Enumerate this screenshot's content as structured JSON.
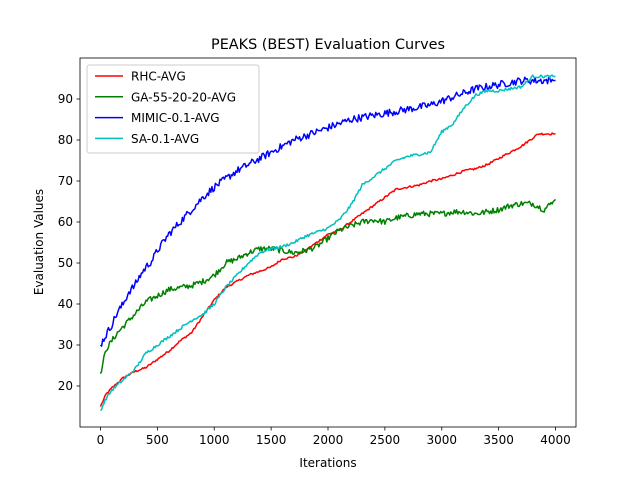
{
  "chart_data": {
    "type": "line",
    "title": "PEAKS (BEST) Evaluation Curves",
    "xlabel": "Iterations",
    "ylabel": "Evaluation Values",
    "xlim": [
      -180,
      4180
    ],
    "ylim": [
      10,
      100
    ],
    "xticks": [
      0,
      500,
      1000,
      1500,
      2000,
      2500,
      3000,
      3500,
      4000
    ],
    "yticks": [
      20,
      30,
      40,
      50,
      60,
      70,
      80,
      90
    ],
    "grid": false,
    "legend_position": "upper-left",
    "series": [
      {
        "name": "RHC-AVG",
        "color": "#ff0000",
        "points": [
          [
            0,
            15.0
          ],
          [
            50,
            18.0
          ],
          [
            100,
            19.5
          ],
          [
            200,
            22.0
          ],
          [
            300,
            23.5
          ],
          [
            400,
            24.5
          ],
          [
            500,
            26.5
          ],
          [
            600,
            28.5
          ],
          [
            700,
            31.0
          ],
          [
            800,
            33.0
          ],
          [
            900,
            37.0
          ],
          [
            1000,
            41.0
          ],
          [
            1100,
            44.0
          ],
          [
            1200,
            45.5
          ],
          [
            1300,
            47.0
          ],
          [
            1400,
            48.0
          ],
          [
            1500,
            49.0
          ],
          [
            1600,
            51.0
          ],
          [
            1700,
            51.5
          ],
          [
            1800,
            53.0
          ],
          [
            1900,
            55.0
          ],
          [
            2000,
            57.0
          ],
          [
            2100,
            58.0
          ],
          [
            2200,
            60.0
          ],
          [
            2300,
            62.0
          ],
          [
            2400,
            64.0
          ],
          [
            2500,
            66.0
          ],
          [
            2600,
            68.0
          ],
          [
            2700,
            68.5
          ],
          [
            2800,
            69.0
          ],
          [
            2900,
            70.0
          ],
          [
            3000,
            70.5
          ],
          [
            3100,
            71.5
          ],
          [
            3200,
            72.5
          ],
          [
            3300,
            73.0
          ],
          [
            3400,
            74.0
          ],
          [
            3500,
            75.5
          ],
          [
            3600,
            77.0
          ],
          [
            3700,
            78.5
          ],
          [
            3750,
            79.5
          ],
          [
            3800,
            80.5
          ],
          [
            3850,
            81.5
          ],
          [
            3900,
            81.5
          ],
          [
            4000,
            81.5
          ]
        ]
      },
      {
        "name": "GA-55-20-20-AVG",
        "color": "#008000",
        "points": [
          [
            0,
            23.0
          ],
          [
            50,
            29.0
          ],
          [
            100,
            31.0
          ],
          [
            150,
            33.0
          ],
          [
            200,
            34.5
          ],
          [
            250,
            36.0
          ],
          [
            300,
            37.5
          ],
          [
            350,
            39.0
          ],
          [
            400,
            40.5
          ],
          [
            500,
            42.0
          ],
          [
            600,
            43.5
          ],
          [
            700,
            44.0
          ],
          [
            800,
            44.5
          ],
          [
            900,
            45.5
          ],
          [
            1000,
            47.0
          ],
          [
            1100,
            50.0
          ],
          [
            1200,
            51.0
          ],
          [
            1300,
            52.5
          ],
          [
            1400,
            53.5
          ],
          [
            1500,
            53.5
          ],
          [
            1600,
            53.0
          ],
          [
            1700,
            52.5
          ],
          [
            1800,
            53.0
          ],
          [
            1900,
            54.0
          ],
          [
            2000,
            56.0
          ],
          [
            2100,
            58.0
          ],
          [
            2200,
            59.0
          ],
          [
            2300,
            60.0
          ],
          [
            2400,
            60.5
          ],
          [
            2500,
            60.0
          ],
          [
            2600,
            61.0
          ],
          [
            2700,
            61.5
          ],
          [
            2800,
            62.0
          ],
          [
            2900,
            62.0
          ],
          [
            3000,
            62.0
          ],
          [
            3100,
            62.5
          ],
          [
            3200,
            62.5
          ],
          [
            3300,
            62.0
          ],
          [
            3400,
            62.5
          ],
          [
            3500,
            63.0
          ],
          [
            3600,
            64.0
          ],
          [
            3700,
            64.5
          ],
          [
            3800,
            64.5
          ],
          [
            3900,
            63.0
          ],
          [
            4000,
            65.5
          ]
        ]
      },
      {
        "name": "MIMIC-0.1-AVG",
        "color": "#0000ff",
        "points": [
          [
            0,
            30.0
          ],
          [
            50,
            32.5
          ],
          [
            100,
            35.0
          ],
          [
            150,
            38.0
          ],
          [
            200,
            40.0
          ],
          [
            250,
            43.0
          ],
          [
            300,
            44.5
          ],
          [
            350,
            47.0
          ],
          [
            400,
            49.0
          ],
          [
            450,
            50.5
          ],
          [
            500,
            53.0
          ],
          [
            550,
            55.0
          ],
          [
            600,
            57.0
          ],
          [
            650,
            58.5
          ],
          [
            700,
            60.0
          ],
          [
            750,
            61.5
          ],
          [
            800,
            63.0
          ],
          [
            850,
            64.5
          ],
          [
            900,
            66.0
          ],
          [
            1000,
            68.5
          ],
          [
            1100,
            70.5
          ],
          [
            1200,
            72.5
          ],
          [
            1300,
            74.0
          ],
          [
            1400,
            75.5
          ],
          [
            1500,
            77.0
          ],
          [
            1600,
            78.5
          ],
          [
            1700,
            80.0
          ],
          [
            1800,
            81.0
          ],
          [
            1900,
            82.0
          ],
          [
            2000,
            83.0
          ],
          [
            2100,
            84.0
          ],
          [
            2200,
            85.0
          ],
          [
            2300,
            85.5
          ],
          [
            2400,
            86.0
          ],
          [
            2500,
            86.5
          ],
          [
            2600,
            87.0
          ],
          [
            2700,
            87.5
          ],
          [
            2800,
            88.0
          ],
          [
            2900,
            88.5
          ],
          [
            3000,
            89.5
          ],
          [
            3100,
            90.5
          ],
          [
            3200,
            91.5
          ],
          [
            3300,
            92.5
          ],
          [
            3400,
            93.0
          ],
          [
            3500,
            93.5
          ],
          [
            3600,
            94.0
          ],
          [
            3700,
            94.5
          ],
          [
            3800,
            94.5
          ],
          [
            3900,
            94.5
          ],
          [
            4000,
            94.5
          ]
        ]
      },
      {
        "name": "SA-0.1-AVG",
        "color": "#00bfbf",
        "points": [
          [
            0,
            14.0
          ],
          [
            50,
            17.0
          ],
          [
            100,
            19.0
          ],
          [
            200,
            21.5
          ],
          [
            300,
            24.0
          ],
          [
            400,
            28.0
          ],
          [
            500,
            30.0
          ],
          [
            600,
            32.0
          ],
          [
            700,
            34.0
          ],
          [
            800,
            36.0
          ],
          [
            900,
            37.5
          ],
          [
            1000,
            40.0
          ],
          [
            1100,
            44.0
          ],
          [
            1200,
            47.0
          ],
          [
            1300,
            50.0
          ],
          [
            1400,
            52.5
          ],
          [
            1500,
            53.5
          ],
          [
            1600,
            54.0
          ],
          [
            1700,
            55.0
          ],
          [
            1800,
            56.5
          ],
          [
            1900,
            57.5
          ],
          [
            2000,
            58.5
          ],
          [
            2100,
            60.5
          ],
          [
            2200,
            64.0
          ],
          [
            2300,
            69.0
          ],
          [
            2400,
            71.0
          ],
          [
            2500,
            73.0
          ],
          [
            2550,
            74.0
          ],
          [
            2600,
            75.0
          ],
          [
            2700,
            76.0
          ],
          [
            2800,
            76.5
          ],
          [
            2900,
            77.0
          ],
          [
            3000,
            82.0
          ],
          [
            3100,
            84.0
          ],
          [
            3200,
            88.0
          ],
          [
            3300,
            91.0
          ],
          [
            3400,
            92.0
          ],
          [
            3500,
            92.0
          ],
          [
            3600,
            92.5
          ],
          [
            3700,
            93.0
          ],
          [
            3800,
            95.5
          ],
          [
            3900,
            95.5
          ],
          [
            4000,
            95.5
          ]
        ]
      }
    ]
  }
}
